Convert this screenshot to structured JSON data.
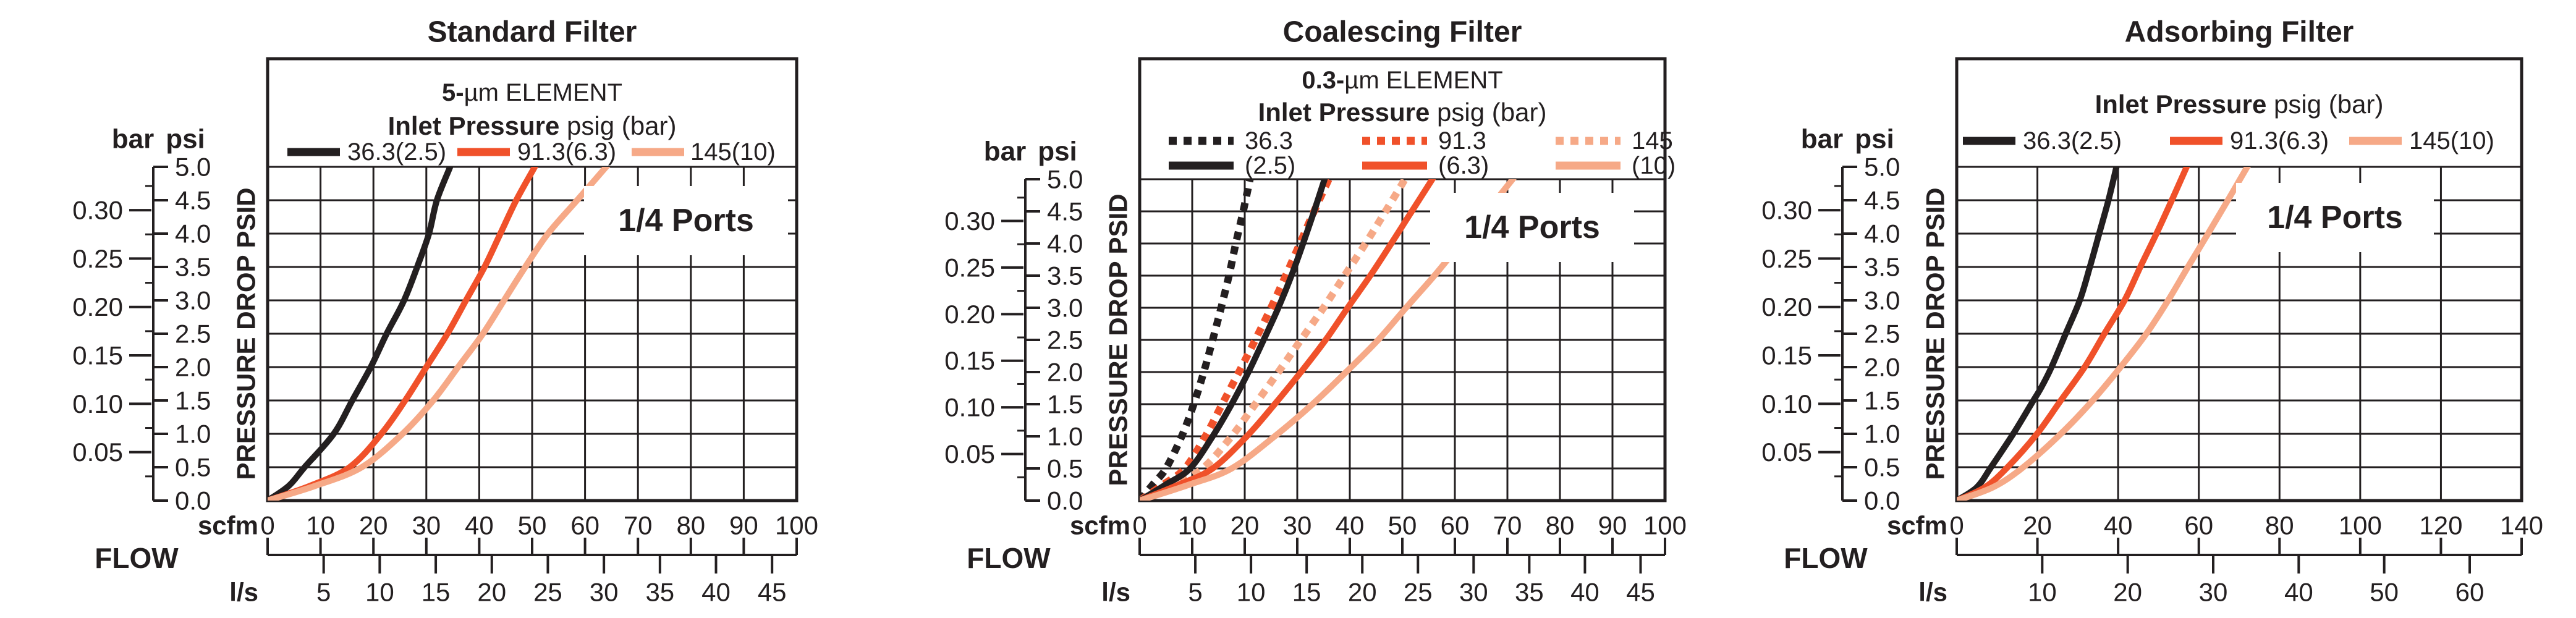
{
  "chart_data": [
    {
      "type": "line",
      "title": "Standard Filter",
      "element_prefix": "5-",
      "element_suffix": "µm ELEMENT",
      "legend_title_bold": "Inlet Pressure",
      "legend_title_rest": " psig (bar)",
      "ports_label": "1/4 Ports",
      "x_axis": {
        "label": "FLOW",
        "unit_primary": "scfm",
        "unit_secondary": "l/s",
        "scfm_max": 100,
        "scfm_ticks": [
          0,
          10,
          20,
          30,
          40,
          50,
          60,
          70,
          80,
          90,
          100
        ],
        "ls_ticks": [
          5,
          10,
          15,
          20,
          25,
          30,
          35,
          40,
          45
        ],
        "ls_to_scfm": 2.1189
      },
      "y_axis": {
        "label": "PRESSURE DROP PSID",
        "unit_left": "bar",
        "unit_right": "psi",
        "psi_max": 5.0,
        "psi_ticks": [
          "0.0",
          "0.5",
          "1.0",
          "1.5",
          "2.0",
          "2.5",
          "3.0",
          "3.5",
          "4.0",
          "4.5",
          "5.0"
        ],
        "bar_ticks": [
          "0.05",
          "0.10",
          "0.15",
          "0.20",
          "0.25",
          "0.30"
        ],
        "bar_to_psi": 14.5038
      },
      "legend": {
        "rows": 1,
        "entries": [
          {
            "label": "36.3(2.5)",
            "color": "#231f20",
            "style": "solid"
          },
          {
            "label": "91.3(6.3)",
            "color": "#f0512a",
            "style": "solid"
          },
          {
            "label": "145(10)",
            "color": "#f6a987",
            "style": "solid"
          }
        ]
      },
      "series": [
        {
          "name": "36.3(2.5)",
          "color": "#231f20",
          "style": "solid",
          "points": [
            [
              0,
              0
            ],
            [
              4,
              0.22
            ],
            [
              7,
              0.5
            ],
            [
              12.5,
              1.0
            ],
            [
              16,
              1.5
            ],
            [
              19.5,
              2.0
            ],
            [
              22.5,
              2.5
            ],
            [
              25.8,
              3.0
            ],
            [
              28.5,
              3.55
            ],
            [
              30.5,
              4.0
            ],
            [
              32,
              4.5
            ],
            [
              34.5,
              5.0
            ]
          ]
        },
        {
          "name": "91.3(6.3)",
          "color": "#f0512a",
          "style": "solid",
          "points": [
            [
              0,
              0
            ],
            [
              8,
              0.22
            ],
            [
              15.5,
              0.5
            ],
            [
              21.5,
              1.0
            ],
            [
              26,
              1.5
            ],
            [
              30,
              2.0
            ],
            [
              34,
              2.5
            ],
            [
              37.5,
              3.0
            ],
            [
              41,
              3.5
            ],
            [
              44,
              4.0
            ],
            [
              47,
              4.5
            ],
            [
              50.5,
              5.0
            ]
          ]
        },
        {
          "name": "145(10)",
          "color": "#f6a987",
          "style": "solid",
          "points": [
            [
              0,
              0
            ],
            [
              9,
              0.22
            ],
            [
              17.8,
              0.5
            ],
            [
              25.5,
              1.0
            ],
            [
              31.3,
              1.5
            ],
            [
              36,
              2.0
            ],
            [
              40.7,
              2.5
            ],
            [
              44.7,
              3.0
            ],
            [
              48.7,
              3.5
            ],
            [
              53,
              4.0
            ],
            [
              58.5,
              4.5
            ],
            [
              64,
              5.0
            ]
          ]
        }
      ]
    },
    {
      "type": "line",
      "title": "Coalescing Filter",
      "element_prefix": "0.3-",
      "element_suffix": "µm ELEMENT",
      "legend_title_bold": "Inlet Pressure",
      "legend_title_rest": " psig (bar)",
      "ports_label": "1/4 Ports",
      "x_axis": {
        "label": "FLOW",
        "unit_primary": "scfm",
        "unit_secondary": "l/s",
        "scfm_max": 100,
        "scfm_ticks": [
          0,
          10,
          20,
          30,
          40,
          50,
          60,
          70,
          80,
          90,
          100
        ],
        "ls_ticks": [
          5,
          10,
          15,
          20,
          25,
          30,
          35,
          40,
          45
        ],
        "ls_to_scfm": 2.1189
      },
      "y_axis": {
        "label": "PRESSURE DROP PSID",
        "unit_left": "bar",
        "unit_right": "psi",
        "psi_max": 5.0,
        "psi_ticks": [
          "0.0",
          "0.5",
          "1.0",
          "1.5",
          "2.0",
          "2.5",
          "3.0",
          "3.5",
          "4.0",
          "4.5",
          "5.0"
        ],
        "bar_ticks": [
          "0.05",
          "0.10",
          "0.15",
          "0.20",
          "0.25",
          "0.30"
        ],
        "bar_to_psi": 14.5038
      },
      "legend": {
        "rows": 2,
        "entries": [
          {
            "label": "36.3",
            "color": "#231f20",
            "style": "dotted"
          },
          {
            "label": "91.3",
            "color": "#f0512a",
            "style": "dotted"
          },
          {
            "label": "145",
            "color": "#f6a987",
            "style": "dotted"
          },
          {
            "label": "(2.5)",
            "color": "#231f20",
            "style": "solid"
          },
          {
            "label": "(6.3)",
            "color": "#f0512a",
            "style": "solid"
          },
          {
            "label": "(10)",
            "color": "#f6a987",
            "style": "solid"
          }
        ]
      },
      "series": [
        {
          "name": "36.3",
          "color": "#231f20",
          "style": "dotted",
          "points": [
            [
              0,
              0
            ],
            [
              2.5,
              0.25
            ],
            [
              5,
              0.5
            ],
            [
              8,
              1.0
            ],
            [
              10.3,
              1.5
            ],
            [
              12.2,
              2.0
            ],
            [
              13.9,
              2.5
            ],
            [
              15.5,
              3.0
            ],
            [
              17,
              3.5
            ],
            [
              18.3,
              4.0
            ],
            [
              19.7,
              4.5
            ],
            [
              21,
              5.0
            ]
          ]
        },
        {
          "name": "91.3",
          "color": "#f0512a",
          "style": "dotted",
          "points": [
            [
              0,
              0
            ],
            [
              4.5,
              0.25
            ],
            [
              8.6,
              0.5
            ],
            [
              12.5,
              1.0
            ],
            [
              15.7,
              1.5
            ],
            [
              18.9,
              2.0
            ],
            [
              22,
              2.5
            ],
            [
              25,
              3.0
            ],
            [
              27.8,
              3.5
            ],
            [
              30.5,
              4.0
            ],
            [
              33.2,
              4.5
            ],
            [
              36,
              5.0
            ]
          ]
        },
        {
          "name": "145",
          "color": "#f6a987",
          "style": "dotted",
          "points": [
            [
              0,
              0
            ],
            [
              6.5,
              0.25
            ],
            [
              12,
              0.5
            ],
            [
              17.5,
              1.0
            ],
            [
              22,
              1.5
            ],
            [
              26.4,
              2.0
            ],
            [
              30.7,
              2.5
            ],
            [
              35,
              3.0
            ],
            [
              39,
              3.5
            ],
            [
              43,
              4.0
            ],
            [
              46.8,
              4.5
            ],
            [
              50.5,
              5.0
            ]
          ]
        },
        {
          "name": "(2.5)",
          "color": "#231f20",
          "style": "solid",
          "points": [
            [
              0,
              0
            ],
            [
              5,
              0.25
            ],
            [
              9.6,
              0.5
            ],
            [
              13.9,
              1.0
            ],
            [
              17.5,
              1.5
            ],
            [
              20.7,
              2.0
            ],
            [
              23.6,
              2.5
            ],
            [
              26.4,
              3.0
            ],
            [
              28.9,
              3.5
            ],
            [
              31.1,
              4.0
            ],
            [
              33.2,
              4.5
            ],
            [
              35.2,
              5.0
            ]
          ]
        },
        {
          "name": "(6.3)",
          "color": "#f0512a",
          "style": "solid",
          "points": [
            [
              0,
              0
            ],
            [
              7.5,
              0.25
            ],
            [
              13.9,
              0.5
            ],
            [
              20.4,
              1.0
            ],
            [
              25.7,
              1.5
            ],
            [
              30.7,
              2.0
            ],
            [
              35.4,
              2.5
            ],
            [
              39.6,
              3.0
            ],
            [
              43.9,
              3.5
            ],
            [
              47.9,
              4.0
            ],
            [
              51.8,
              4.5
            ],
            [
              55.7,
              5.0
            ]
          ]
        },
        {
          "name": "(10)",
          "color": "#f6a987",
          "style": "solid",
          "points": [
            [
              0,
              0
            ],
            [
              9.5,
              0.25
            ],
            [
              17.5,
              0.5
            ],
            [
              25.7,
              1.0
            ],
            [
              32.9,
              1.5
            ],
            [
              39.3,
              2.0
            ],
            [
              45.4,
              2.5
            ],
            [
              50.7,
              3.0
            ],
            [
              56.1,
              3.5
            ],
            [
              61.1,
              4.0
            ],
            [
              66.1,
              4.5
            ],
            [
              71,
              5.0
            ]
          ]
        }
      ]
    },
    {
      "type": "line",
      "title": "Adsorbing Filter",
      "element_prefix": null,
      "element_suffix": null,
      "legend_title_bold": "Inlet Pressure",
      "legend_title_rest": " psig (bar)",
      "ports_label": "1/4 Ports",
      "x_axis": {
        "label": "FLOW",
        "unit_primary": "scfm",
        "unit_secondary": "l/s",
        "scfm_max": 140,
        "scfm_ticks": [
          0,
          20,
          40,
          60,
          80,
          100,
          120,
          140
        ],
        "ls_ticks": [
          10,
          20,
          30,
          40,
          50,
          60
        ],
        "ls_to_scfm": 2.1189
      },
      "y_axis": {
        "label": "PRESSURE DROP PSID",
        "unit_left": "bar",
        "unit_right": "psi",
        "psi_max": 5.0,
        "psi_ticks": [
          "0.0",
          "0.5",
          "1.0",
          "1.5",
          "2.0",
          "2.5",
          "3.0",
          "3.5",
          "4.0",
          "4.5",
          "5.0"
        ],
        "bar_ticks": [
          "0.05",
          "0.10",
          "0.15",
          "0.20",
          "0.25",
          "0.30"
        ],
        "bar_to_psi": 14.5038
      },
      "legend": {
        "rows": 1,
        "entries": [
          {
            "label": "36.3(2.5)",
            "color": "#231f20",
            "style": "solid"
          },
          {
            "label": "91.3(6.3)",
            "color": "#f0512a",
            "style": "solid"
          },
          {
            "label": "145(10)",
            "color": "#f6a987",
            "style": "solid"
          }
        ]
      },
      "series": [
        {
          "name": "36.3(2.5)",
          "color": "#231f20",
          "style": "solid",
          "points": [
            [
              0,
              0
            ],
            [
              5,
              0.2
            ],
            [
              8.5,
              0.5
            ],
            [
              14,
              1.0
            ],
            [
              18.5,
              1.45
            ],
            [
              21,
              1.7
            ],
            [
              23.5,
              2.0
            ],
            [
              27,
              2.5
            ],
            [
              30.5,
              3.0
            ],
            [
              33,
              3.5
            ],
            [
              35.3,
              4.0
            ],
            [
              37.6,
              4.5
            ],
            [
              39.6,
              5.0
            ]
          ]
        },
        {
          "name": "91.3(6.3)",
          "color": "#f0512a",
          "style": "solid",
          "points": [
            [
              0,
              0
            ],
            [
              7,
              0.2
            ],
            [
              12.6,
              0.5
            ],
            [
              19.9,
              1.0
            ],
            [
              25.8,
              1.5
            ],
            [
              31.7,
              2.0
            ],
            [
              36.6,
              2.5
            ],
            [
              41.6,
              3.0
            ],
            [
              45.5,
              3.5
            ],
            [
              49.5,
              4.0
            ],
            [
              53.3,
              4.5
            ],
            [
              57,
              5.0
            ]
          ]
        },
        {
          "name": "145(10)",
          "color": "#f6a987",
          "style": "solid",
          "points": [
            [
              0,
              0
            ],
            [
              9,
              0.2
            ],
            [
              16.5,
              0.5
            ],
            [
              25.8,
              1.0
            ],
            [
              33.7,
              1.5
            ],
            [
              40.6,
              2.0
            ],
            [
              47,
              2.5
            ],
            [
              52.4,
              3.0
            ],
            [
              57.3,
              3.5
            ],
            [
              62.3,
              4.0
            ],
            [
              67.2,
              4.5
            ],
            [
              72,
              5.0
            ]
          ]
        }
      ]
    }
  ],
  "colors": {
    "ink": "#231f20",
    "pressure_36": "#231f20",
    "pressure_91": "#f0512a",
    "pressure_145": "#f6a987",
    "background": "#ffffff"
  }
}
